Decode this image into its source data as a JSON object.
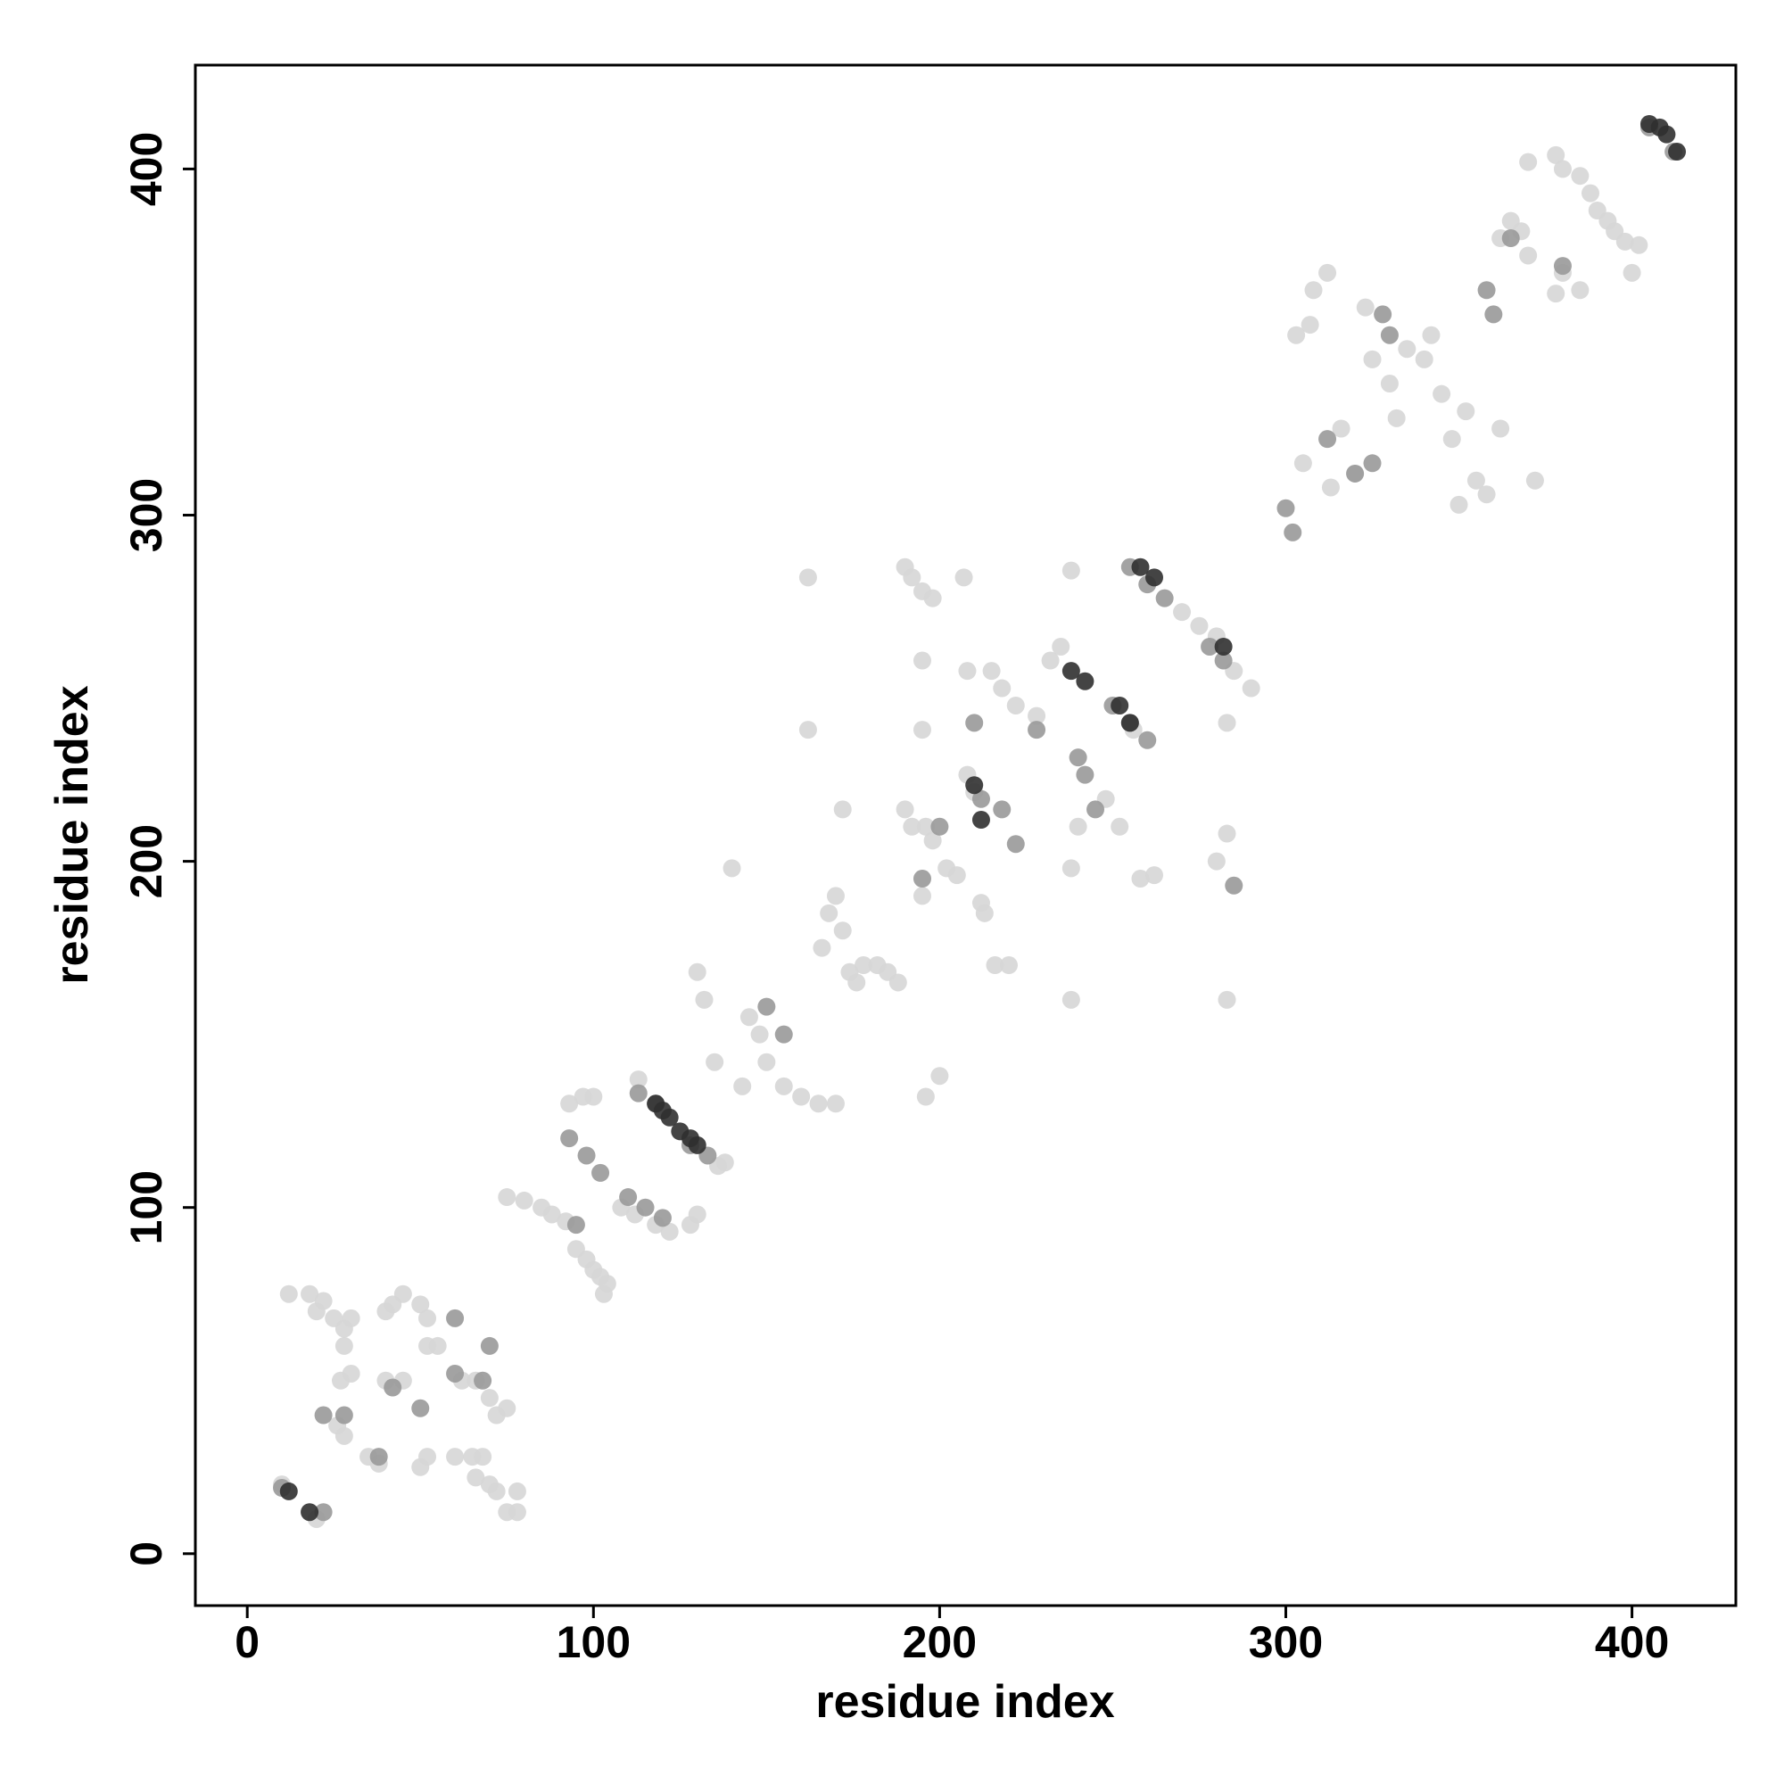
{
  "chart_data": {
    "type": "scatter",
    "x_label": "residue index",
    "y_label": "residue index",
    "xlim": [
      -15,
      430
    ],
    "ylim": [
      -15,
      430
    ],
    "xticks": [
      0,
      100,
      200,
      300,
      400
    ],
    "yticks": [
      0,
      100,
      200,
      300,
      400
    ],
    "series": [
      {
        "color": "#d6d6d6",
        "x": [
          10,
          12,
          18,
          20,
          22,
          25,
          28,
          30,
          28,
          30,
          27,
          26,
          28,
          35,
          38,
          40,
          42,
          45,
          40,
          45,
          50,
          52,
          52,
          55,
          52,
          50,
          60,
          62,
          65,
          68,
          66,
          70,
          72,
          75,
          66,
          70,
          72,
          75,
          78,
          78,
          20,
          75,
          80,
          85,
          88,
          92,
          93,
          97,
          100,
          95,
          98,
          100,
          102,
          104,
          103,
          113,
          108,
          112,
          118,
          122,
          128,
          130,
          130,
          132,
          135,
          136,
          138,
          140,
          143,
          145,
          148,
          150,
          155,
          160,
          162,
          162,
          165,
          170,
          166,
          168,
          170,
          172,
          172,
          174,
          176,
          178,
          182,
          185,
          188,
          190,
          192,
          190,
          192,
          195,
          198,
          195,
          195,
          195,
          196,
          198,
          200,
          196,
          202,
          205,
          208,
          210,
          207,
          208,
          212,
          213,
          215,
          216,
          220,
          218,
          222,
          228,
          232,
          235,
          238,
          238,
          238,
          240,
          248,
          252,
          256,
          258,
          262,
          270,
          275,
          280,
          283,
          285,
          290,
          283,
          283,
          280,
          303,
          305,
          307,
          308,
          312,
          313,
          316,
          320,
          323,
          325,
          330,
          332,
          335,
          340,
          342,
          345,
          348,
          350,
          352,
          355,
          358,
          362,
          362,
          365,
          368,
          370,
          372,
          370,
          378,
          380,
          385,
          388,
          390,
          393,
          395,
          398,
          400,
          402,
          385,
          380,
          378
        ],
        "y": [
          20,
          75,
          75,
          70,
          73,
          68,
          65,
          68,
          60,
          52,
          50,
          37,
          34,
          28,
          26,
          70,
          72,
          75,
          50,
          50,
          72,
          68,
          60,
          60,
          28,
          25,
          28,
          50,
          28,
          28,
          50,
          45,
          40,
          42,
          22,
          20,
          18,
          12,
          12,
          18,
          10,
          103,
          102,
          100,
          98,
          96,
          130,
          132,
          132,
          88,
          85,
          82,
          80,
          78,
          75,
          137,
          100,
          98,
          95,
          93,
          95,
          98,
          168,
          160,
          142,
          112,
          113,
          198,
          135,
          155,
          150,
          142,
          135,
          132,
          282,
          238,
          130,
          130,
          175,
          185,
          190,
          180,
          215,
          168,
          165,
          170,
          170,
          168,
          165,
          215,
          210,
          285,
          282,
          278,
          276,
          258,
          238,
          190,
          210,
          206,
          138,
          132,
          198,
          196,
          225,
          220,
          282,
          255,
          188,
          185,
          255,
          170,
          170,
          250,
          245,
          242,
          258,
          262,
          284,
          198,
          160,
          210,
          218,
          210,
          238,
          195,
          196,
          272,
          268,
          265,
          240,
          255,
          250,
          208,
          160,
          200,
          352,
          315,
          355,
          365,
          370,
          308,
          325,
          312,
          360,
          345,
          338,
          328,
          348,
          345,
          352,
          335,
          322,
          303,
          330,
          310,
          306,
          325,
          380,
          385,
          382,
          375,
          310,
          402,
          404,
          400,
          398,
          393,
          388,
          385,
          382,
          379,
          370,
          378,
          365,
          370,
          364
        ]
      },
      {
        "color": "#999999",
        "x": [
          22,
          28,
          38,
          42,
          50,
          60,
          68,
          70,
          60,
          93,
          98,
          102,
          95,
          110,
          115,
          120,
          113,
          118,
          128,
          133,
          150,
          155,
          195,
          200,
          210,
          212,
          218,
          222,
          228,
          240,
          242,
          245,
          250,
          255,
          260,
          255,
          260,
          265,
          278,
          282,
          285,
          300,
          302,
          312,
          320,
          325,
          328,
          330,
          358,
          360,
          365,
          380,
          405,
          412,
          10,
          22
        ],
        "y": [
          40,
          40,
          28,
          48,
          42,
          52,
          50,
          60,
          68,
          120,
          115,
          110,
          95,
          103,
          100,
          97,
          133,
          130,
          118,
          115,
          158,
          150,
          195,
          210,
          240,
          218,
          215,
          205,
          238,
          230,
          225,
          215,
          245,
          240,
          235,
          285,
          280,
          276,
          262,
          258,
          193,
          302,
          295,
          322,
          312,
          315,
          358,
          352,
          365,
          358,
          380,
          372,
          412,
          405,
          19,
          12
        ]
      },
      {
        "color": "#303030",
        "x": [
          12,
          18,
          118,
          120,
          122,
          125,
          128,
          130,
          212,
          238,
          242,
          252,
          255,
          258,
          262,
          282,
          405,
          408,
          410,
          413,
          210
        ],
        "y": [
          18,
          12,
          130,
          128,
          126,
          122,
          120,
          118,
          212,
          255,
          252,
          245,
          240,
          285,
          282,
          262,
          413,
          412,
          410,
          405,
          222
        ]
      }
    ]
  }
}
